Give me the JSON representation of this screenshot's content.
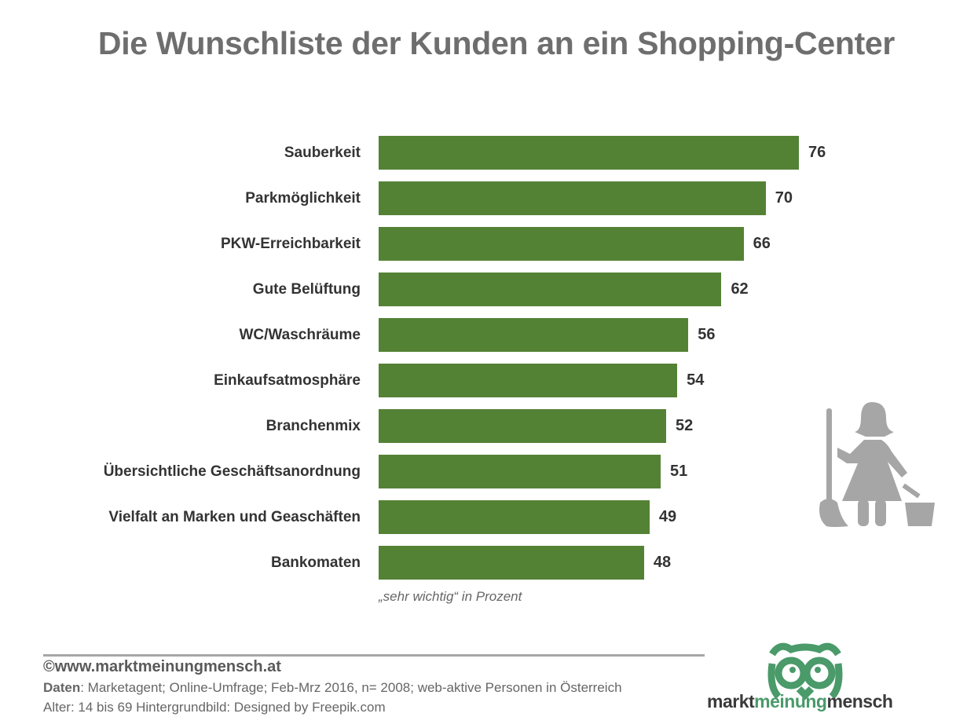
{
  "chart_data": {
    "type": "bar",
    "orientation": "horizontal",
    "title": "Die Wunschliste der Kunden an ein Shopping-Center",
    "categories": [
      "Sauberkeit",
      "Parkmöglichkeit",
      "PKW-Erreichbarkeit",
      "Gute Belüftung",
      "WC/Waschräume",
      "Einkaufsatmosphäre",
      "Branchenmix",
      "Übersichtliche Geschäftsanordnung",
      "Vielfalt an Marken und Geaschäften",
      "Bankomaten"
    ],
    "values": [
      76,
      70,
      66,
      62,
      56,
      54,
      52,
      51,
      49,
      48
    ],
    "xlabel": "„sehr wichtig“ in Prozent",
    "ylabel": "",
    "xlim": [
      0,
      100
    ],
    "grid": false,
    "color": "#548235"
  },
  "footer": {
    "site": "©www.marktmeinungmensch.at",
    "data_label": "Daten",
    "data_text": ": Marketagent; Online-Umfrage; Feb-Mrz 2016, n= 2008; web-aktive Personen in Österreich",
    "age_text": "Alter: 14 bis 69  Hintergrundbild: Designed by Freepik.com"
  },
  "logo": {
    "part1": "markt",
    "part2": "meinung",
    "part3": "mensch"
  }
}
